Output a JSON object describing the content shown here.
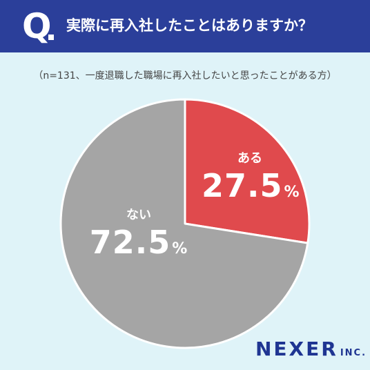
{
  "header": {
    "q_mark": "Q",
    "title": "実際に再入社したことはありますか？"
  },
  "note": "（n=131、一度退職した職場に再入社したいと思ったことがある方）",
  "logo": {
    "main": "NEXER",
    "sub": "INC."
  },
  "colors": {
    "header_bg": "#2b3f9a",
    "page_bg": "#dff3f8",
    "slice_yes": "#e04a4d",
    "slice_no": "#a5a5a5",
    "logo": "#1f3592"
  },
  "chart_data": {
    "type": "pie",
    "title": "",
    "slices": [
      {
        "label": "ある",
        "value": 27.5,
        "value_text": "27.5",
        "unit": "%",
        "color": "#e04a4d"
      },
      {
        "label": "ない",
        "value": 72.5,
        "value_text": "72.5",
        "unit": "%",
        "color": "#a5a5a5"
      }
    ],
    "start_angle": "top",
    "direction": "clockwise"
  }
}
